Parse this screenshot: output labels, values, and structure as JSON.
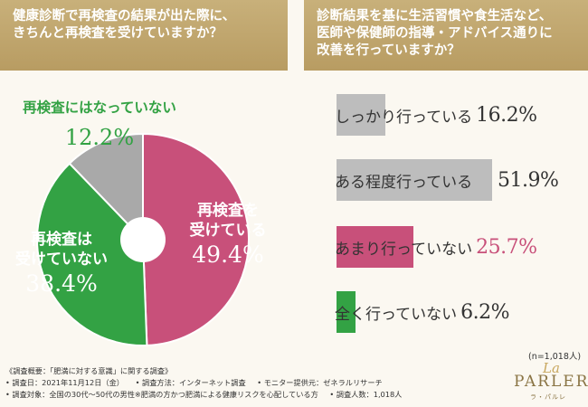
{
  "questions": {
    "left": [
      "健康診断で再検査の結果が出た際に、",
      "きちんと再検査を受けていますか？"
    ],
    "right": [
      "診断結果を基に生活習慣や食生活など、",
      "医師や保健師の指導・アドバイス通りに",
      "改善を行っていますか？"
    ]
  },
  "chart_data": [
    {
      "type": "pie",
      "slices": [
        {
          "label": [
            "再検査を",
            "受けている"
          ],
          "value": 49.4,
          "value_label": "49.4%",
          "color": "#c8507a"
        },
        {
          "label": [
            "再検査は",
            "受けていない"
          ],
          "value": 38.4,
          "value_label": "38.4%",
          "color": "#33a244"
        },
        {
          "label": [
            "再検査にはなっていない"
          ],
          "value": 12.2,
          "value_label": "12.2%",
          "color": "#a9a9a9"
        }
      ]
    },
    {
      "type": "bar",
      "orientation": "horizontal",
      "categories": [
        "しっかり行っている",
        "ある程度行っている",
        "あまり行っていない",
        "全く行っていない"
      ],
      "values": [
        16.2,
        51.9,
        25.7,
        6.2
      ],
      "value_labels": [
        "16.2%",
        "51.9%",
        "25.7%",
        "6.2%"
      ],
      "colors": [
        "#bdbdbd",
        "#bdbdbd",
        "#c8507a",
        "#33a244"
      ],
      "value_colors": [
        "#333333",
        "#333333",
        "#c8507a",
        "#333333"
      ],
      "xlim": [
        0,
        51.9
      ]
    }
  ],
  "sample_size": "(n=1,018人)",
  "survey": {
    "title": "《調査概要：「肥満に対する意識」に関する調査》",
    "items_row1": [
      "• 調査日：2021年11月12日（金）",
      "• 調査方法：インターネット調査",
      "• モニター提供元：ゼネラルリサーチ"
    ],
    "items_row2": [
      "• 調査対象：全国の30代～50代の男性※肥満の方かつ肥満による健康リスクを心配している方",
      "• 調査人数：1,018人"
    ]
  },
  "logo": {
    "la": "La",
    "main": "PARLER",
    "sub": "ラ・パルレ"
  }
}
